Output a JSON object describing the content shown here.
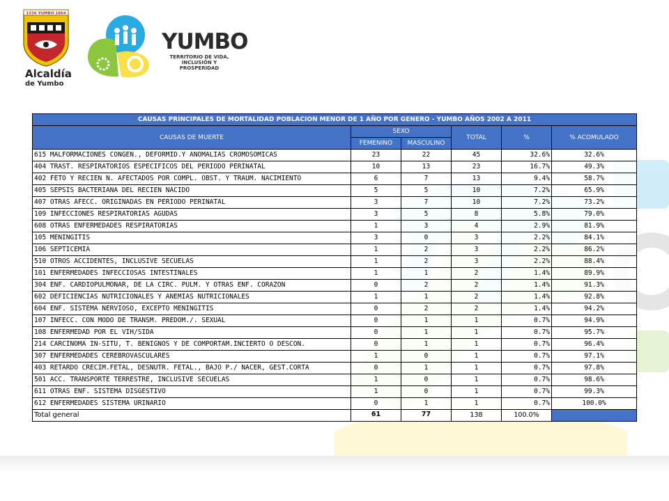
{
  "header": {
    "shield_motto": "1536 YUMBO 1864",
    "alcaldia": "Alcaldía",
    "de_yumbo": "de Yumbo",
    "brand_word": "YUMBO",
    "tagline": [
      "TERRITORIO DE VIDA,",
      "INCLUSIÓN Y PROSPERIDAD"
    ]
  },
  "table": {
    "title": "CAUSAS PRINCIPALES DE MORTALIDAD POBLACION MENOR DE 1 AÑO POR GENERO - YUMBO AÑOS 2002 A 2011",
    "headers": {
      "causes": "CAUSAS DE MUERTE",
      "sex": "SEXO",
      "female": "FEMENINO",
      "male": "MASCULINO",
      "total": "TOTAL",
      "percent": "%",
      "cumulative": "% ACOMULADO"
    },
    "rows": [
      {
        "cause": "615 MALFORMACIONES CONGEN., DEFORMID.Y ANOMALIAS CROMOSOMICAS",
        "f": "23",
        "m": "22",
        "total": "45",
        "pct": "32.6%",
        "cum": "32.6%"
      },
      {
        "cause": "404 TRAST. RESPIRATORIOS ESPECIFICOS DEL PERIODO PERINATAL",
        "f": "10",
        "m": "13",
        "total": "23",
        "pct": "16.7%",
        "cum": "49.3%"
      },
      {
        "cause": "402 FETO Y RECIEN N. AFECTADOS POR COMPL. OBST. Y TRAUM. NACIMIENTO",
        "f": "6",
        "m": "7",
        "total": "13",
        "pct": "9.4%",
        "cum": "58.7%"
      },
      {
        "cause": "405 SEPSIS BACTERIANA DEL RECIEN NACIDO",
        "f": "5",
        "m": "5",
        "total": "10",
        "pct": "7.2%",
        "cum": "65.9%"
      },
      {
        "cause": "407 OTRAS AFECC. ORIGINADAS EN PERIODO PERINATAL",
        "f": "3",
        "m": "7",
        "total": "10",
        "pct": "7.2%",
        "cum": "73.2%"
      },
      {
        "cause": "109 INFECCIONES RESPIRATORIAS AGUDAS",
        "f": "3",
        "m": "5",
        "total": "8",
        "pct": "5.8%",
        "cum": "79.0%"
      },
      {
        "cause": "608 OTRAS ENFERMEDADES RESPIRATORIAS",
        "f": "1",
        "m": "3",
        "total": "4",
        "pct": "2.9%",
        "cum": "81.9%"
      },
      {
        "cause": "105 MENINGITIS",
        "f": "3",
        "m": "0",
        "total": "3",
        "pct": "2.2%",
        "cum": "84.1%"
      },
      {
        "cause": "106 SEPTICEMIA",
        "f": "1",
        "m": "2",
        "total": "3",
        "pct": "2.2%",
        "cum": "86.2%"
      },
      {
        "cause": "510 OTROS ACCIDENTES, INCLUSIVE SECUELAS",
        "f": "1",
        "m": "2",
        "total": "3",
        "pct": "2.2%",
        "cum": "88.4%"
      },
      {
        "cause": "101 ENFERMEDADES INFECCIOSAS INTESTINALES",
        "f": "1",
        "m": "1",
        "total": "2",
        "pct": "1.4%",
        "cum": "89.9%"
      },
      {
        "cause": "304 ENF. CARDIOPULMONAR, DE LA CIRC. PULM. Y OTRAS ENF. CORAZON",
        "f": "0",
        "m": "2",
        "total": "2",
        "pct": "1.4%",
        "cum": "91.3%"
      },
      {
        "cause": "602 DEFICIENCIAS NUTRICIONALES Y ANEMIAS NUTRICIONALES",
        "f": "1",
        "m": "1",
        "total": "2",
        "pct": "1.4%",
        "cum": "92.8%"
      },
      {
        "cause": "604 ENF. SISTEMA NERVIOSO, EXCEPTO MENINGITIS",
        "f": "0",
        "m": "2",
        "total": "2",
        "pct": "1.4%",
        "cum": "94.2%"
      },
      {
        "cause": "107 INFECC. CON MODO DE TRANSM. PREDOM./. SEXUAL",
        "f": "0",
        "m": "1",
        "total": "1",
        "pct": "0.7%",
        "cum": "94.9%"
      },
      {
        "cause": "108 ENFERMEDAD POR EL VIH/SIDA",
        "f": "0",
        "m": "1",
        "total": "1",
        "pct": "0.7%",
        "cum": "95.7%"
      },
      {
        "cause": "214 CARCINOMA IN-SITU, T. BENIGNOS Y DE COMPORTAM.INCIERTO O DESCON.",
        "f": "0",
        "m": "1",
        "total": "1",
        "pct": "0.7%",
        "cum": "96.4%"
      },
      {
        "cause": "307 ENFERMEDADES CEREBROVASCULARES",
        "f": "1",
        "m": "0",
        "total": "1",
        "pct": "0.7%",
        "cum": "97.1%"
      },
      {
        "cause": "403 RETARDO CRECIM.FETAL, DESNUTR. FETAL., BAJO P./ NACER, GEST.CORTA",
        "f": "0",
        "m": "1",
        "total": "1",
        "pct": "0.7%",
        "cum": "97.8%"
      },
      {
        "cause": "501 ACC. TRANSPORTE TERRESTRE, INCLUSIVE SECUELAS",
        "f": "1",
        "m": "0",
        "total": "1",
        "pct": "0.7%",
        "cum": "98.6%"
      },
      {
        "cause": "611 OTRAS ENF. SISTEMA DISGESTIVO",
        "f": "1",
        "m": "0",
        "total": "1",
        "pct": "0.7%",
        "cum": "99.3%"
      },
      {
        "cause": "612 ENFERMEDADES SISTEMA URINARIO",
        "f": "0",
        "m": "1",
        "total": "1",
        "pct": "0.7%",
        "cum": "100.0%"
      }
    ],
    "total_row": {
      "label": "Total general",
      "f": "61",
      "m": "77",
      "total": "138",
      "pct": "100.0%"
    }
  },
  "colors": {
    "header_blue": "#4472c4",
    "brand_green": "#8cc63f",
    "brand_blue": "#29abe2",
    "brand_yellow": "#f9e04b",
    "shield_red": "#c1272d",
    "shield_gold": "#f2c300"
  }
}
